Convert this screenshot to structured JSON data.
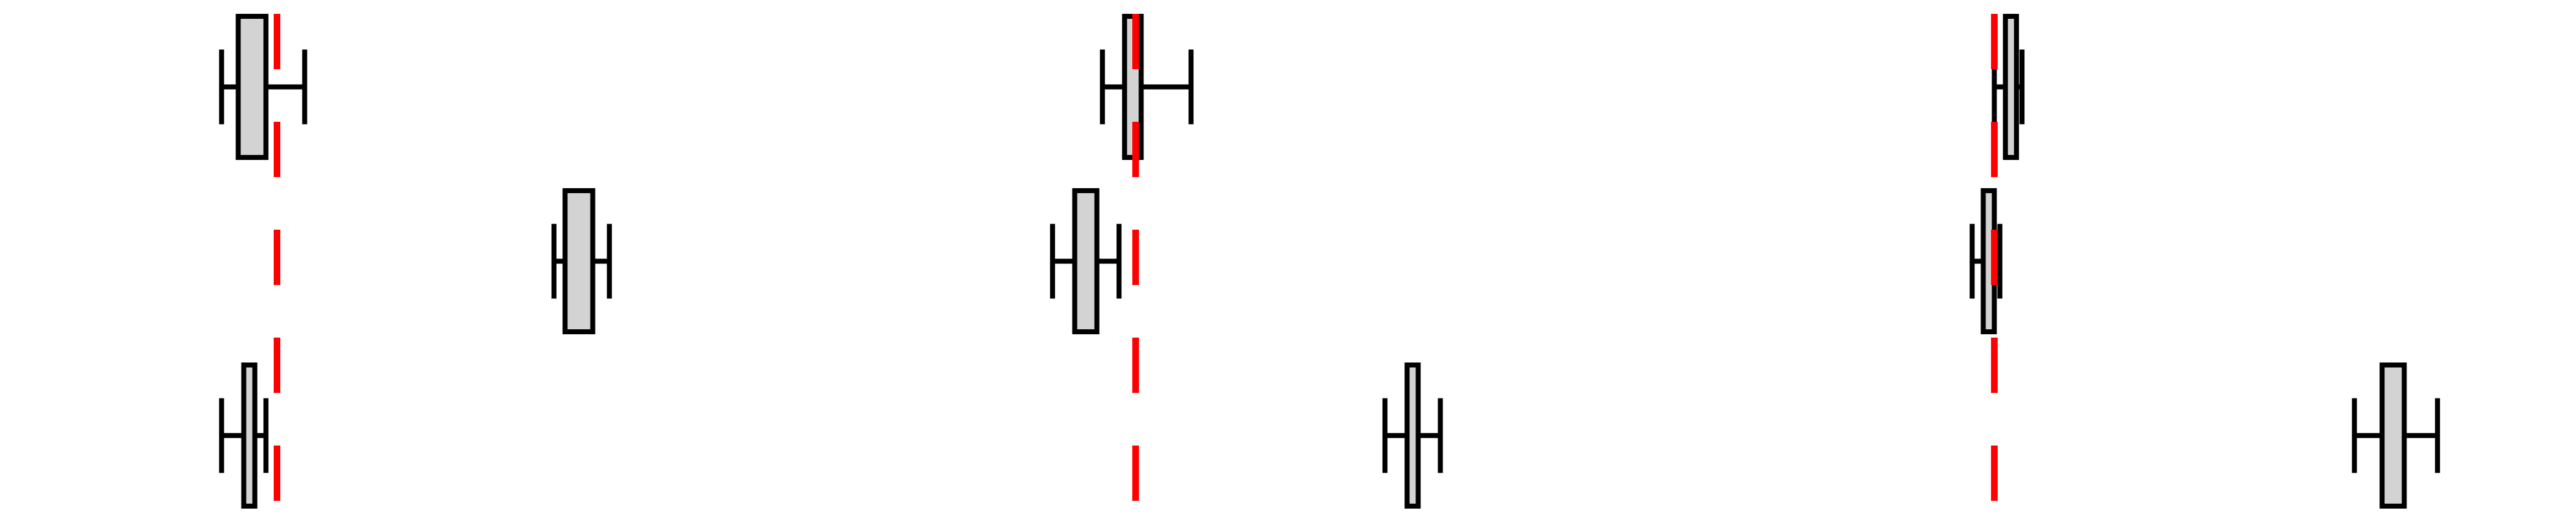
{
  "chart_data": [
    {
      "type": "boxplot",
      "orientation": "horizontal",
      "grid": false,
      "axes_visible": false,
      "x_range": [
        0,
        1.55
      ],
      "reference_line": {
        "x": 0.5,
        "color": "#ff0000",
        "style": "dashed"
      },
      "box_fill": "#d3d3d3",
      "box_stroke": "#000000",
      "rows": [
        {
          "whisker_low": 0.4,
          "q1": 0.43,
          "median": 0.455,
          "q3": 0.48,
          "whisker_high": 0.55
        },
        {
          "whisker_low": 1.0,
          "q1": 1.02,
          "median": 1.05,
          "q3": 1.07,
          "whisker_high": 1.1
        },
        {
          "whisker_low": 0.4,
          "q1": 0.44,
          "median": 0.45,
          "q3": 0.46,
          "whisker_high": 0.48
        }
      ]
    },
    {
      "type": "boxplot",
      "orientation": "horizontal",
      "grid": false,
      "axes_visible": false,
      "x_range": [
        0,
        1.55
      ],
      "reference_line": {
        "x": 0.5,
        "color": "#ff0000",
        "style": "dashed"
      },
      "box_fill": "#d3d3d3",
      "box_stroke": "#000000",
      "rows": [
        {
          "whisker_low": 0.44,
          "q1": 0.48,
          "median": 0.49,
          "q3": 0.51,
          "whisker_high": 0.6
        },
        {
          "whisker_low": 0.35,
          "q1": 0.39,
          "median": 0.41,
          "q3": 0.43,
          "whisker_high": 0.47
        },
        {
          "whisker_low": 0.95,
          "q1": 0.99,
          "median": 1.0,
          "q3": 1.01,
          "whisker_high": 1.05
        }
      ]
    },
    {
      "type": "boxplot",
      "orientation": "horizontal",
      "grid": false,
      "axes_visible": false,
      "x_range": [
        0,
        1.55
      ],
      "reference_line": {
        "x": 0.5,
        "color": "#ff0000",
        "style": "dashed"
      },
      "box_fill": "#d3d3d3",
      "box_stroke": "#000000",
      "rows": [
        {
          "whisker_low": 0.5,
          "q1": 0.52,
          "median": 0.53,
          "q3": 0.54,
          "whisker_high": 0.55
        },
        {
          "whisker_low": 0.46,
          "q1": 0.48,
          "median": 0.49,
          "q3": 0.5,
          "whisker_high": 0.51
        },
        {
          "whisker_low": 1.15,
          "q1": 1.2,
          "median": 1.22,
          "q3": 1.24,
          "whisker_high": 1.3
        }
      ]
    }
  ]
}
